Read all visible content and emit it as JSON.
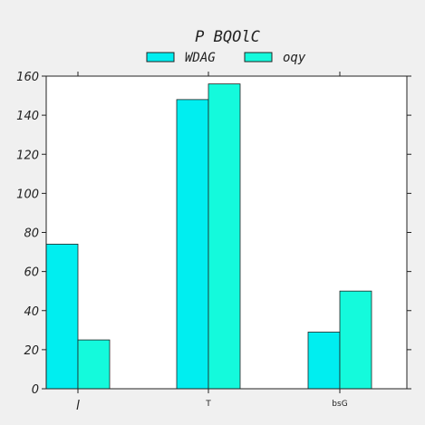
{
  "chart_data": {
    "type": "bar",
    "title": "P BQOlC",
    "categories": [
      "l",
      "T",
      "bsG"
    ],
    "series": [
      {
        "name": "WDAG",
        "color": "#00eef0",
        "values": [
          74,
          148,
          29
        ]
      },
      {
        "name": "oqy",
        "color": "#14fadc",
        "values": [
          25,
          156,
          50
        ]
      }
    ],
    "ylim": [
      0,
      160
    ],
    "yticks": [
      0,
      20,
      40,
      60,
      80,
      100,
      120,
      140,
      160
    ],
    "grid": false,
    "legend_position": "top-center"
  }
}
